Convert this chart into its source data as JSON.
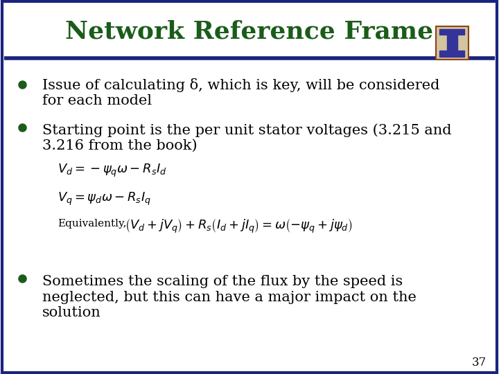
{
  "title": "Network Reference Frame",
  "title_color": "#1a5c1a",
  "title_fontsize": 26,
  "bg_color": "#ffffff",
  "border_color": "#1a237e",
  "bullet_color": "#1a5c1a",
  "text_color": "#000000",
  "page_number": "37",
  "bullet1_line1": "Issue of calculating δ, which is key, will be considered",
  "bullet1_line2": "for each model",
  "bullet2_line1": "Starting point is the per unit stator voltages (3.215 and",
  "bullet2_line2": "3.216 from the book)",
  "eq1": "$V_d = -\\psi_q\\omega - R_s I_d$",
  "eq2": "$V_q = \\psi_d\\omega - R_s I_q$",
  "eq3_prefix": "Equivalently,",
  "eq3_math": "$\\left(V_d+jV_q\\right)+ R_s\\left(I_d+jI_q\\right)=\\omega\\left(-\\psi_q + j\\psi_d\\right)$",
  "bullet3_line1": "Sometimes the scaling of the flux by the speed is",
  "bullet3_line2": "neglected, but this can have a major impact on the",
  "bullet3_line3": "solution",
  "font_family": "serif",
  "body_fontsize": 15,
  "eq_fontsize": 13
}
